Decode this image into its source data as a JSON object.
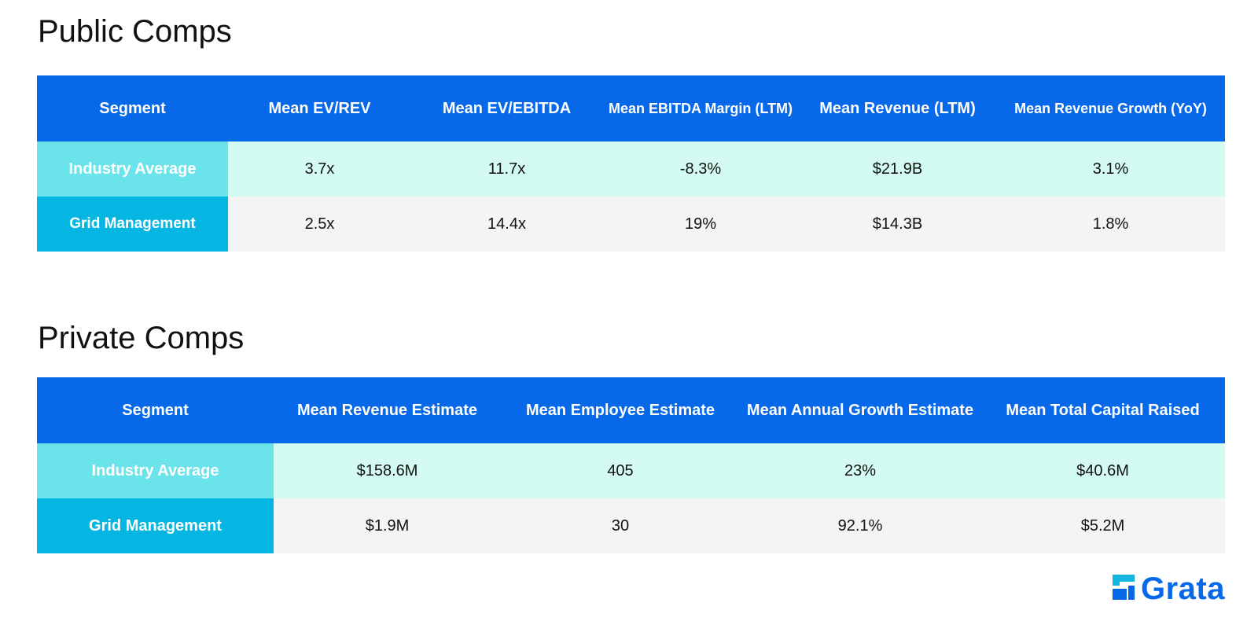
{
  "public": {
    "title": "Public Comps",
    "headers": [
      "Segment",
      "Mean EV/REV",
      "Mean EV/EBITDA",
      "Mean EBITDA Margin (LTM)",
      "Mean Revenue (LTM)",
      "Mean Revenue Growth (YoY)"
    ],
    "rows": [
      {
        "segment": "Industry Average",
        "values": [
          "3.7x",
          "11.7x",
          "-8.3%",
          "$21.9B",
          "3.1%"
        ]
      },
      {
        "segment": "Grid Management",
        "values": [
          "2.5x",
          "14.4x",
          "19%",
          "$14.3B",
          "1.8%"
        ]
      }
    ]
  },
  "private": {
    "title": "Private Comps",
    "headers": [
      "Segment",
      "Mean Revenue Estimate",
      "Mean Employee Estimate",
      "Mean Annual Growth Estimate",
      "Mean Total Capital Raised"
    ],
    "rows": [
      {
        "segment": "Industry Average",
        "values": [
          "$158.6M",
          "405",
          "23%",
          "$40.6M"
        ]
      },
      {
        "segment": "Grid Management",
        "values": [
          "$1.9M",
          "30",
          "92.1%",
          "$5.2M"
        ]
      }
    ]
  },
  "logo": {
    "text": "Grata",
    "icon": "grata-logo-icon",
    "color": "#0769ea",
    "icon_color": "#14b6e0"
  },
  "colors": {
    "header_blue": "#0769ea",
    "industry_segment": "#6ae4ea",
    "grid_segment": "#06b6e2",
    "industry_row": "#d3fbf1",
    "grid_row": "#f4f4f4"
  }
}
